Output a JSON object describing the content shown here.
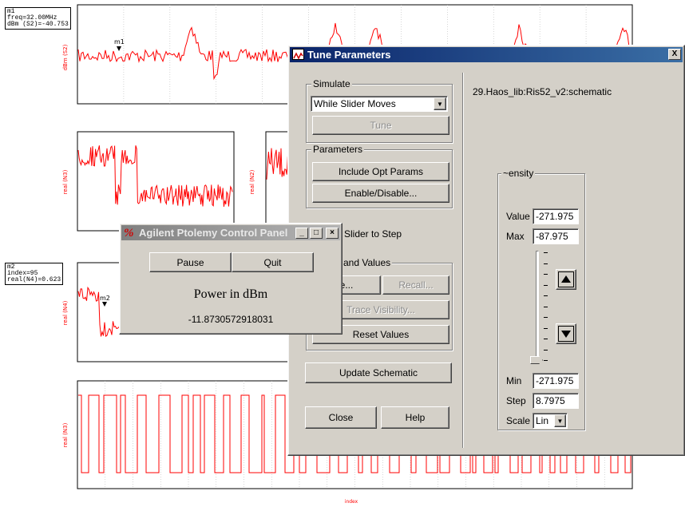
{
  "background": {
    "plot1": {
      "marker_label": "m1",
      "annotation": [
        "m1",
        "freq=32.00MHz",
        "dBm (S2)=-40.753"
      ],
      "ylabel": "dBm (S2)"
    },
    "plot2": {
      "ylabel": "real (N3)"
    },
    "plot2b": {
      "ylabel": "real (N2)"
    },
    "plot3": {
      "marker_label": "m2",
      "annotation": [
        "m2",
        "index=95",
        "real(N4)=0.623"
      ],
      "ylabel": "real (N4)"
    },
    "plot4": {
      "ylabel": "real (N3)",
      "xlabel": "index"
    },
    "colors": {
      "trace": "#ff0000",
      "axis": "#000000"
    }
  },
  "tune": {
    "title": "Tune Parameters",
    "close_glyph": "X",
    "simulate": {
      "label": "Simulate",
      "mode": "While Slider Moves",
      "tune_button": "Tune"
    },
    "parameters": {
      "label": "Parameters",
      "include_opt": "Include Opt Params",
      "enable_disable": "Enable/Disable..."
    },
    "slider_to_step": "Slider to Step",
    "values_group": {
      "label": "and Values",
      "save": "e...",
      "recall": "Recall...",
      "trace_visibility": "Trace Visibility...",
      "reset": "Reset Values"
    },
    "update_schematic": "Update Schematic",
    "close": "Close",
    "help": "Help",
    "schematic_path": "29.Haos_lib:Ris52_v2:schematic",
    "param": {
      "name": "~ensity",
      "value_label": "Value",
      "value": "-271.975",
      "max_label": "Max",
      "max": "-87.975",
      "min_label": "Min",
      "min": "-271.975",
      "step_label": "Step",
      "step": "8.7975",
      "scale_label": "Scale",
      "scale": "Lin",
      "slider_level": 0
    },
    "accent": "#0a246a"
  },
  "ptolemy": {
    "title": "Agilent Ptolemy Control Panel",
    "pause": "Pause",
    "quit": "Quit",
    "heading": "Power in dBm",
    "value": "-11.8730572918031"
  }
}
